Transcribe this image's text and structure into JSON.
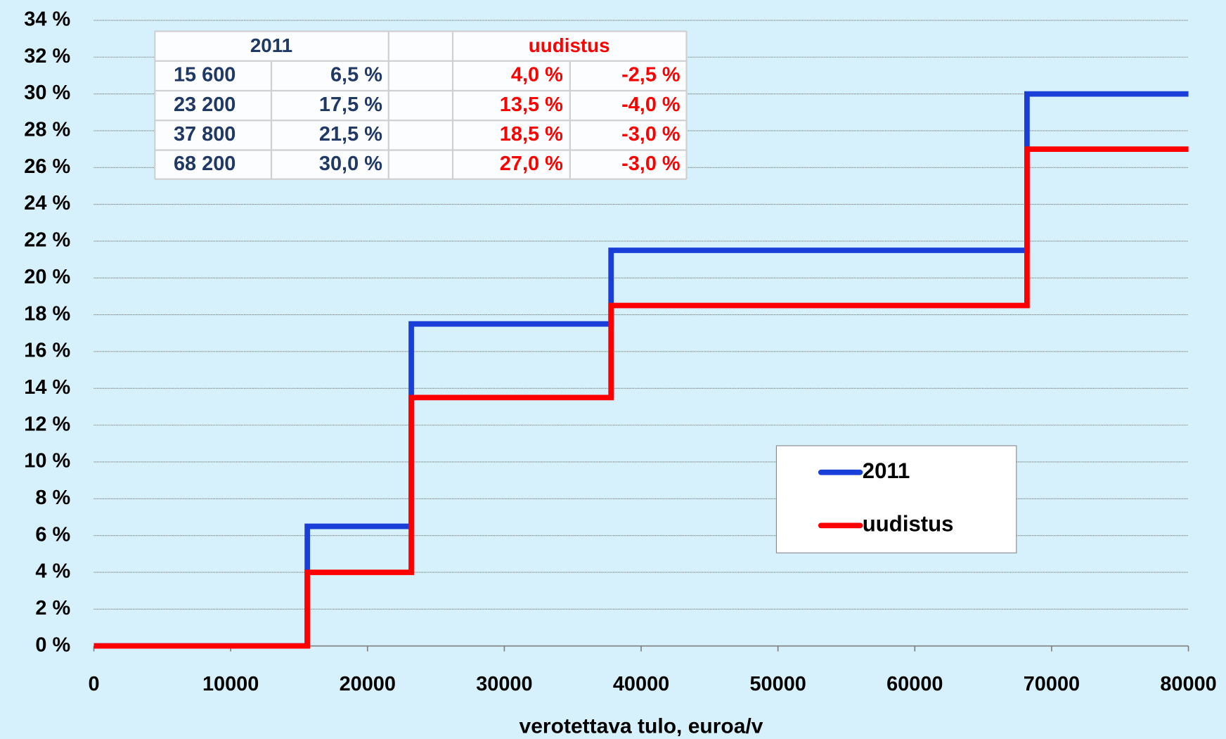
{
  "chart_data": {
    "type": "line",
    "x_label": "verotettava tulo, euroa/v",
    "x": [
      0,
      15600,
      15600,
      23200,
      23200,
      37800,
      37800,
      68200,
      68200,
      80000
    ],
    "series": [
      {
        "name": "2011",
        "color": "#1a3fd9",
        "values": [
          0,
          0,
          6.5,
          6.5,
          17.5,
          17.5,
          21.5,
          21.5,
          30,
          30
        ]
      },
      {
        "name": "uudistus",
        "color": "#ff0000",
        "values": [
          0,
          0,
          4,
          4,
          13.5,
          13.5,
          18.5,
          18.5,
          27,
          27
        ]
      }
    ],
    "xlim": [
      0,
      80000
    ],
    "xticks": [
      0,
      10000,
      20000,
      30000,
      40000,
      50000,
      60000,
      70000,
      80000
    ],
    "ylim": [
      0,
      34
    ],
    "yticks": [
      {
        "value": 0,
        "label": "0 %"
      },
      {
        "value": 2,
        "label": "2 %"
      },
      {
        "value": 4,
        "label": "4 %"
      },
      {
        "value": 6,
        "label": "6 %"
      },
      {
        "value": 8,
        "label": "8 %"
      },
      {
        "value": 10,
        "label": "10 %"
      },
      {
        "value": 12,
        "label": "12 %"
      },
      {
        "value": 14,
        "label": "14 %"
      },
      {
        "value": 16,
        "label": "16 %"
      },
      {
        "value": 18,
        "label": "18 %"
      },
      {
        "value": 20,
        "label": "20 %"
      },
      {
        "value": 22,
        "label": "22 %"
      },
      {
        "value": 24,
        "label": "24 %"
      },
      {
        "value": 26,
        "label": "26 %"
      },
      {
        "value": 28,
        "label": "28 %"
      },
      {
        "value": 30,
        "label": "30 %"
      },
      {
        "value": 32,
        "label": "32 %"
      },
      {
        "value": 34,
        "label": "34 %"
      }
    ],
    "grid": true,
    "legend": "lower right",
    "table": {
      "header": [
        "2011",
        "uudistus"
      ],
      "rows": [
        [
          "15 600",
          "6,5 %",
          "4,0 %",
          "-2,5 %"
        ],
        [
          "23 200",
          "17,5 %",
          "13,5 %",
          "-4,0 %"
        ],
        [
          "37 800",
          "21,5 %",
          "18,5 %",
          "-3,0 %"
        ],
        [
          "68 200",
          "30,0 %",
          "27,0 %",
          "-3,0 %"
        ]
      ]
    }
  }
}
